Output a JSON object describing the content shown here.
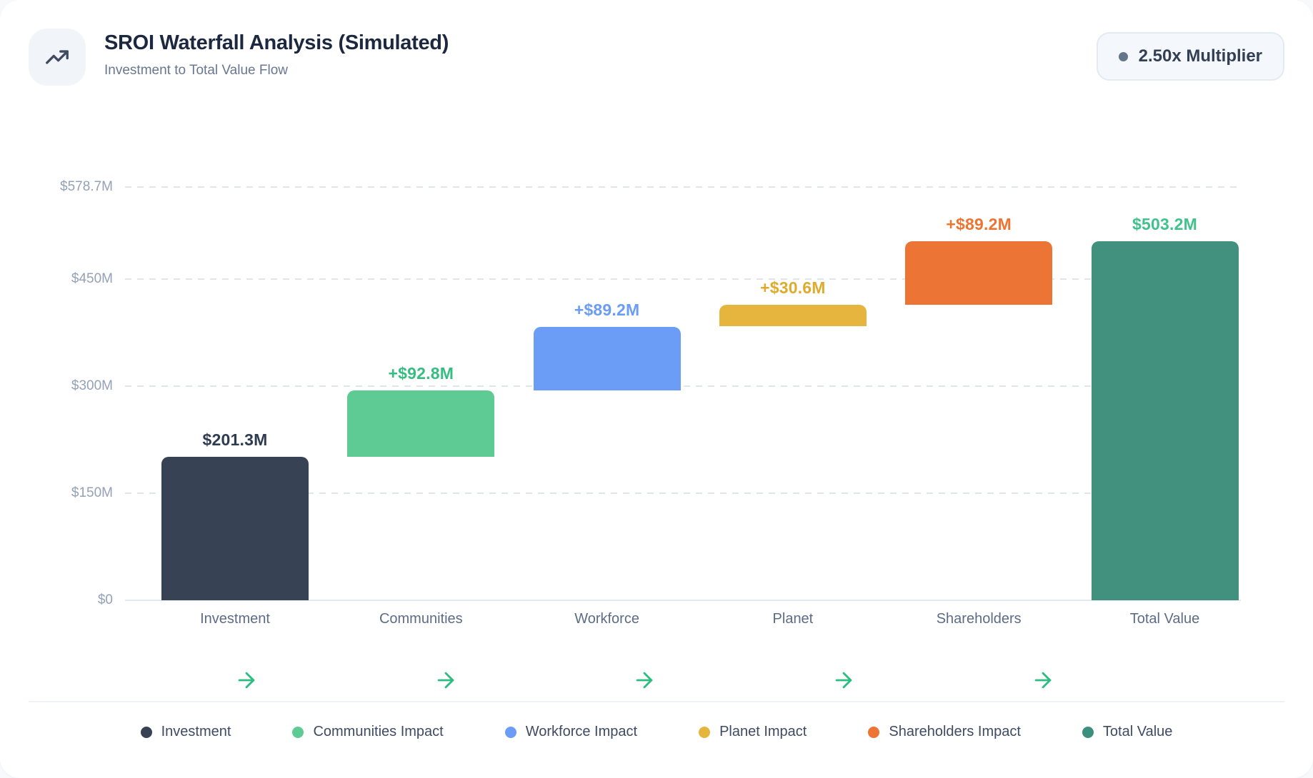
{
  "header": {
    "title": "SROI Waterfall Analysis (Simulated)",
    "subtitle": "Investment to Total Value Flow",
    "badge": {
      "label": "2.50x Multiplier",
      "dot_color": "#64748b"
    }
  },
  "chart_data": {
    "type": "bar",
    "subtype": "waterfall",
    "title": "SROI Waterfall Analysis (Simulated)",
    "xlabel": "",
    "ylabel": "",
    "ylim": [
      0,
      578.7
    ],
    "grid": "dashed-horizontal",
    "categories": [
      "Investment",
      "Communities",
      "Workforce",
      "Planet",
      "Shareholders",
      "Total Value"
    ],
    "segments": [
      {
        "category": "Investment",
        "start": 0,
        "end": 201.3,
        "value_label": "$201.3M",
        "bar_color": "#374354",
        "label_color": "#2f3b50"
      },
      {
        "category": "Communities",
        "start": 201.3,
        "end": 294.1,
        "value_label": "+$92.8M",
        "bar_color": "#5fcb94",
        "label_color": "#35bd82"
      },
      {
        "category": "Workforce",
        "start": 294.1,
        "end": 383.3,
        "value_label": "+$89.2M",
        "bar_color": "#6b9cf6",
        "label_color": "#6b9cf6"
      },
      {
        "category": "Planet",
        "start": 383.3,
        "end": 413.9,
        "value_label": "+$30.6M",
        "bar_color": "#e5b53e",
        "label_color": "#dfab2e"
      },
      {
        "category": "Shareholders",
        "start": 413.9,
        "end": 503.1,
        "value_label": "+$89.2M",
        "bar_color": "#ec7434",
        "label_color": "#ed7431"
      },
      {
        "category": "Total Value",
        "start": 0,
        "end": 503.2,
        "value_label": "$503.2M",
        "bar_color": "#42917f",
        "label_color": "#41c28c"
      }
    ],
    "y_ticks": [
      {
        "value": 0,
        "label": "$0"
      },
      {
        "value": 150,
        "label": "$150M"
      },
      {
        "value": 300,
        "label": "$300M"
      },
      {
        "value": 450,
        "label": "$450M"
      },
      {
        "value": 578.7,
        "label": "$578.7M"
      }
    ],
    "flow_arrows": {
      "count": 5,
      "color": "#2dbd80"
    },
    "legend_position": "bottom-center"
  },
  "legend": {
    "items": [
      {
        "label": "Investment",
        "color": "#374354"
      },
      {
        "label": "Communities Impact",
        "color": "#5fcb94"
      },
      {
        "label": "Workforce Impact",
        "color": "#6b9cf6"
      },
      {
        "label": "Planet Impact",
        "color": "#e5b53e"
      },
      {
        "label": "Shareholders Impact",
        "color": "#ec7434"
      },
      {
        "label": "Total Value",
        "color": "#3d8f7d"
      }
    ]
  }
}
